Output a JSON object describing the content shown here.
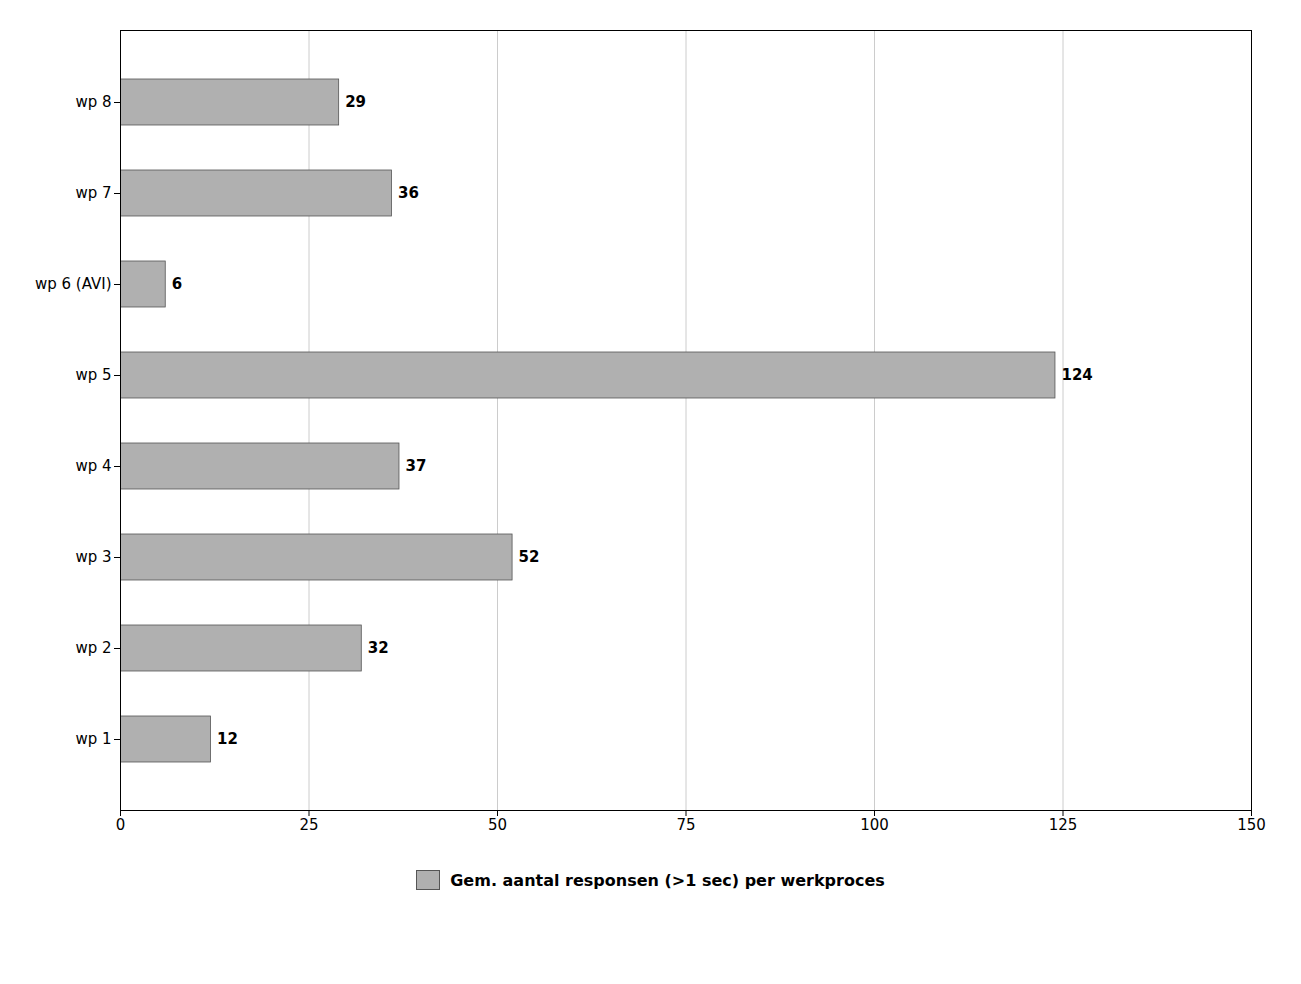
{
  "chart_data": {
    "type": "bar",
    "orientation": "horizontal",
    "categories": [
      "wp 1",
      "wp 2",
      "wp 3",
      "wp 4",
      "wp 5",
      "wp 6 (AVI)",
      "wp 7",
      "wp 8"
    ],
    "series": [
      {
        "name": "Gem. aantal responsen (>1 sec) per werkproces",
        "color": "#b0b0b0",
        "values": [
          12,
          32,
          52,
          37,
          124,
          6,
          36,
          29
        ]
      }
    ],
    "xlim": [
      0,
      150
    ],
    "xticks": [
      0,
      25,
      50,
      75,
      100,
      125,
      150
    ],
    "grid": true,
    "data_labels": true,
    "legend": "bottom"
  }
}
